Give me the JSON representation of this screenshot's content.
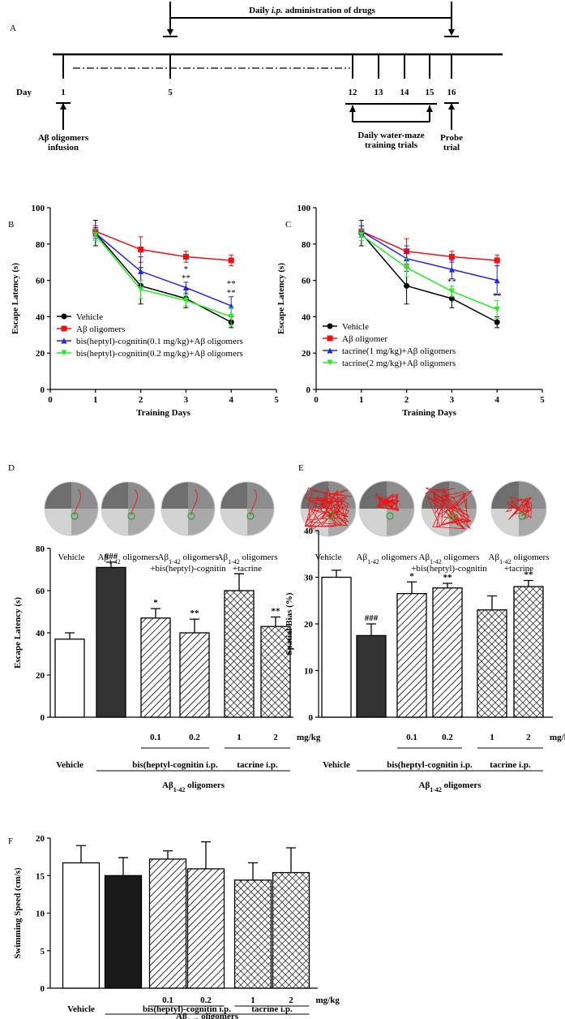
{
  "panel_labels": [
    "A",
    "B",
    "C",
    "D",
    "E",
    "F"
  ],
  "timeline": {
    "title_parts": [
      "Daily ",
      "i.p.",
      " administration of drugs"
    ],
    "day_label": "Day",
    "days": [
      1,
      5,
      12,
      13,
      14,
      15,
      16
    ],
    "infusion": [
      "Aβ oligomers",
      "infusion"
    ],
    "training": [
      "Daily water-maze",
      "training trials"
    ],
    "probe": [
      "Probe",
      "trial"
    ]
  },
  "mazes": [
    {
      "labels": [
        [
          [
            "Vehicle"
          ]
        ],
        [
          [
            "Aβ",
            {
              "sub": "1-42"
            },
            " oligomers"
          ]
        ],
        [
          [
            "Aβ",
            {
              "sub": "1-42"
            },
            " oligomers"
          ],
          [
            "+bis(heptyl)-cognitin"
          ]
        ],
        [
          [
            "Aβ",
            {
              "sub": "1-42"
            },
            " oligomers"
          ],
          [
            "+tacrine"
          ]
        ]
      ]
    },
    {
      "labels": [
        [
          [
            "Vehicle"
          ]
        ],
        [
          [
            "Aβ",
            {
              "sub": "1-42"
            },
            " oligomers"
          ]
        ],
        [
          [
            "Aβ",
            {
              "sub": "1-42"
            },
            " oligomers"
          ],
          [
            "+bis(heptyl)-cognitin"
          ]
        ],
        [
          [
            "Aβ",
            {
              "sub": "1-42"
            },
            " oligomers"
          ],
          [
            "+tacrine"
          ]
        ]
      ]
    }
  ],
  "chart_data": [
    {
      "type": "line",
      "ylabel": "Escape Latency (s)",
      "xlabel": "Training Days",
      "x": [
        1,
        2,
        3,
        4
      ],
      "xlim": [
        0,
        5
      ],
      "xticks": [
        0,
        1,
        2,
        3,
        4,
        5
      ],
      "ylim": [
        0,
        100
      ],
      "yticks": [
        0,
        20,
        40,
        60,
        80,
        100
      ],
      "legend": "lower left",
      "series": [
        {
          "name": "Vehicle",
          "color": "#000000",
          "marker": "circle",
          "values": [
            86,
            57,
            50,
            37
          ],
          "errors": [
            7,
            10,
            5,
            3
          ]
        },
        {
          "name": "Aβ oligomers",
          "color": "#ee1111",
          "marker": "square",
          "values": [
            87,
            77,
            73,
            71
          ],
          "errors": [
            3,
            7,
            3,
            3
          ]
        },
        {
          "name": "bis(heptyl)-cognitin(0.1 mg/kg)+Aβ oligomers",
          "color": "#2222ee",
          "marker": "triangle-up",
          "values": [
            86,
            65,
            56,
            46
          ],
          "errors": [
            3,
            8,
            3,
            5
          ]
        },
        {
          "name": "bis(heptyl)-cognitin(0.2 mg/kg)+Aβ oligomers",
          "color": "#22ee22",
          "marker": "triangle-down",
          "values": [
            85,
            55,
            49,
            40
          ],
          "errors": [
            3,
            5,
            3,
            5
          ]
        }
      ],
      "annotations": [
        {
          "text": "**",
          "series": 3,
          "index": 2
        },
        {
          "text": "*",
          "series": 2,
          "index": 2
        },
        {
          "text": "**",
          "series": 3,
          "index": 3
        },
        {
          "text": "**",
          "series": 2,
          "index": 3
        }
      ]
    },
    {
      "type": "line",
      "ylabel": "Escape Latency (s)",
      "xlabel": "Training Days",
      "x": [
        1,
        2,
        3,
        4
      ],
      "xlim": [
        0,
        5
      ],
      "xticks": [
        0,
        1,
        2,
        3,
        4,
        5
      ],
      "ylim": [
        0,
        100
      ],
      "yticks": [
        0,
        20,
        40,
        60,
        80,
        100
      ],
      "legend": "lower left",
      "series": [
        {
          "name": "Vehicle",
          "color": "#000000",
          "marker": "circle",
          "values": [
            86,
            57,
            50,
            37
          ],
          "errors": [
            7,
            10,
            5,
            3
          ]
        },
        {
          "name": "Aβ oligomer",
          "color": "#ee1111",
          "marker": "square",
          "values": [
            87,
            76,
            73,
            71
          ],
          "errors": [
            3,
            7,
            3,
            3
          ]
        },
        {
          "name": "tacrine(1 mg/kg)+Aβ oligomers",
          "color": "#2222ee",
          "marker": "triangle-up",
          "values": [
            87,
            72,
            66,
            60
          ],
          "errors": [
            3,
            7,
            5,
            8
          ]
        },
        {
          "name": "tacrine(2 mg/kg)+Aβ oligomers",
          "color": "#22ee22",
          "marker": "triangle-down",
          "values": [
            85,
            67,
            54,
            44
          ],
          "errors": [
            3,
            5,
            3,
            5
          ]
        }
      ],
      "annotations": [
        {
          "text": "**",
          "series": 3,
          "index": 2
        },
        {
          "text": "**",
          "series": 3,
          "index": 3
        }
      ]
    },
    {
      "type": "bar",
      "ylabel": "Escape Latency (s)",
      "categories": [
        "Vehicle",
        null,
        "0.1",
        "0.2",
        "1",
        "2"
      ],
      "unit": "mg/kg",
      "values": [
        37,
        71,
        47,
        40,
        60,
        43
      ],
      "errors": [
        3,
        2.5,
        4.5,
        6.5,
        8,
        4.5
      ],
      "colors": [
        "#ffffff",
        "#333333",
        "#ffffff",
        "#ffffff",
        "#ffffff",
        "#ffffff"
      ],
      "patterns": [
        "solid",
        "solid",
        "diagonal",
        "diagonal",
        "cross",
        "cross"
      ],
      "ylim": [
        0,
        80
      ],
      "yticks": [
        0,
        20,
        40,
        60,
        80
      ],
      "annotations": [
        {
          "text": "###",
          "index": 1
        },
        {
          "text": "*",
          "index": 2
        },
        {
          "text": "**",
          "index": 3
        },
        {
          "text": "**",
          "index": 5
        }
      ],
      "groups": [
        {
          "label": "bis(heptyl-cognitin i.p.",
          "from": 2,
          "to": 3
        },
        {
          "label": "tacrine i.p.",
          "from": 4,
          "to": 5
        }
      ],
      "footer": [
        "Aβ",
        {
          "sub": "1-42"
        },
        " oligomers"
      ]
    },
    {
      "type": "bar",
      "ylabel": "Spatial Bias (%)",
      "categories": [
        "Vehicle",
        null,
        "0.1",
        "0.2",
        "1",
        "2"
      ],
      "unit": "mg/kg",
      "values": [
        30,
        17.5,
        26.5,
        27.7,
        23,
        28
      ],
      "errors": [
        1.5,
        2.5,
        2.5,
        1,
        3,
        1.3
      ],
      "colors": [
        "#ffffff",
        "#333333",
        "#ffffff",
        "#ffffff",
        "#ffffff",
        "#ffffff"
      ],
      "patterns": [
        "solid",
        "solid",
        "diagonal",
        "diagonal",
        "cross",
        "cross"
      ],
      "ylim": [
        0,
        40
      ],
      "yticks": [
        0,
        10,
        20,
        30,
        40
      ],
      "annotations": [
        {
          "text": "###",
          "index": 1
        },
        {
          "text": "*",
          "index": 2
        },
        {
          "text": "**",
          "index": 3
        },
        {
          "text": "**",
          "index": 5
        }
      ],
      "groups": [
        {
          "label": "bis(heptyl-cognitin i.p.",
          "from": 2,
          "to": 3
        },
        {
          "label": "tacrine i.p.",
          "from": 4,
          "to": 5
        }
      ],
      "footer": [
        "Aβ",
        {
          "sub": "1-42"
        },
        " oligomers"
      ]
    },
    {
      "type": "bar",
      "ylabel": "Swimming Speed (cm/s)",
      "categories": [
        "Vehicle",
        null,
        "0.1",
        "0.2",
        "1",
        "2"
      ],
      "unit": "mg/kg",
      "values": [
        16.7,
        15,
        17.2,
        15.9,
        14.4,
        15.4
      ],
      "errors": [
        2.3,
        2.4,
        1.1,
        3.6,
        2.3,
        3.3
      ],
      "colors": [
        "#ffffff",
        "#1a1a1a",
        "#ffffff",
        "#ffffff",
        "#ffffff",
        "#ffffff"
      ],
      "patterns": [
        "solid",
        "solid",
        "diagonal",
        "diagonal",
        "cross",
        "cross"
      ],
      "ylim": [
        0,
        20
      ],
      "yticks": [
        0,
        5,
        10,
        15,
        20
      ],
      "annotations": [],
      "groups": [
        {
          "label": "bis(heptyl)-cognitin i.p.",
          "from": 2,
          "to": 3
        },
        {
          "label": "tacrine i.p.",
          "from": 4,
          "to": 5
        }
      ],
      "footer": [
        "Aβ",
        {
          "sub": "1-42"
        },
        " oligomers"
      ]
    }
  ]
}
